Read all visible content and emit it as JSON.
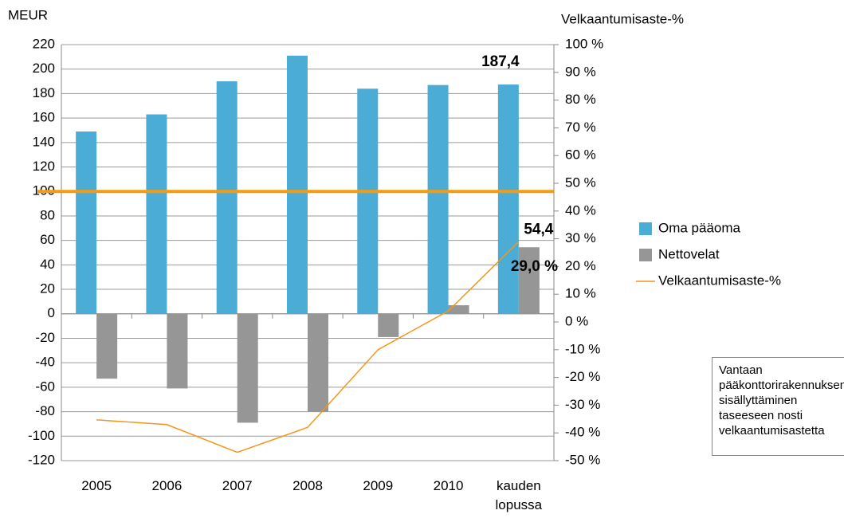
{
  "chart_data": {
    "type": "bar_line",
    "y_label": "MEUR",
    "y2_label": "Velkaantumisaste-%",
    "categories": [
      "2005",
      "2006",
      "2007",
      "2008",
      "2009",
      "2010",
      "kauden lopussa"
    ],
    "series": [
      {
        "name": "Oma pääoma",
        "color": "#4bacd6",
        "type": "bar",
        "values": [
          149,
          163,
          190,
          211,
          184,
          187,
          187.4
        ],
        "value_labels": [
          null,
          null,
          null,
          null,
          null,
          null,
          "187,4"
        ]
      },
      {
        "name": "Nettovelat",
        "color": "#969696",
        "type": "bar",
        "values": [
          -53,
          -61,
          -89,
          -80,
          -19,
          7,
          54.4
        ],
        "value_labels": [
          null,
          null,
          null,
          null,
          null,
          null,
          "54,4"
        ]
      },
      {
        "name": "Velkaantumisaste-%",
        "color": "#f7941d",
        "type": "line",
        "axis": "y2",
        "values": [
          -35.3,
          -37,
          -47,
          -38,
          -10,
          4,
          29.0
        ],
        "value_labels": [
          null,
          null,
          null,
          null,
          null,
          null,
          "29,0 %"
        ]
      }
    ],
    "reference_line": {
      "value": 100,
      "color": "#f39c12"
    },
    "ylim": [
      -120,
      220
    ],
    "yticks": [
      -120,
      -100,
      -80,
      -60,
      -40,
      -20,
      0,
      20,
      40,
      60,
      80,
      100,
      120,
      140,
      160,
      180,
      200,
      220
    ],
    "y2lim": [
      -50,
      100
    ],
    "y2ticks": [
      {
        "value": -50,
        "label": "-50 %"
      },
      {
        "value": -40,
        "label": "-40 %"
      },
      {
        "value": -30,
        "label": "-30 %"
      },
      {
        "value": -20,
        "label": "-20 %"
      },
      {
        "value": -10,
        "label": "-10 %"
      },
      {
        "value": 0,
        "label": "0 %"
      },
      {
        "value": 10,
        "label": "10 %"
      },
      {
        "value": 20,
        "label": "20 %"
      },
      {
        "value": 30,
        "label": "30 %"
      },
      {
        "value": 40,
        "label": "40 %"
      },
      {
        "value": 50,
        "label": "50 %"
      },
      {
        "value": 60,
        "label": "60 %"
      },
      {
        "value": 70,
        "label": "70 %"
      },
      {
        "value": 80,
        "label": "80 %"
      },
      {
        "value": 90,
        "label": "90 %"
      },
      {
        "value": 100,
        "label": "100 %"
      }
    ],
    "grid": true,
    "legend": "right",
    "annotation": "Vantaan pääkonttorirakennuksen sisällyttäminen taseeseen nosti velkaantumisastetta"
  }
}
